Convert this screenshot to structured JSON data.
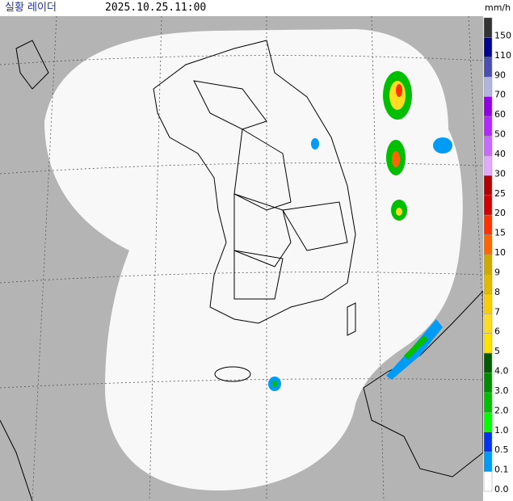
{
  "header": {
    "title": "실황 레이더",
    "time": "2025.10.25.11:00"
  },
  "legend": {
    "unit": "mm/h",
    "items": [
      {
        "label": "150",
        "color": "#333333"
      },
      {
        "label": "110",
        "color": "#000390"
      },
      {
        "label": "90",
        "color": "#4c4eb1"
      },
      {
        "label": "70",
        "color": "#b3b4de"
      },
      {
        "label": "60",
        "color": "#9300e4"
      },
      {
        "label": "50",
        "color": "#b329ff"
      },
      {
        "label": "40",
        "color": "#c969ff"
      },
      {
        "label": "30",
        "color": "#e0a9ff"
      },
      {
        "label": "25",
        "color": "#b40000"
      },
      {
        "label": "20",
        "color": "#d20000"
      },
      {
        "label": "15",
        "color": "#ff3200"
      },
      {
        "label": "10",
        "color": "#ff6600"
      },
      {
        "label": "9",
        "color": "#ccaa00"
      },
      {
        "label": "8",
        "color": "#e0b900"
      },
      {
        "label": "7",
        "color": "#f9cd00"
      },
      {
        "label": "6",
        "color": "#ffdc1f"
      },
      {
        "label": "5",
        "color": "#ffe100"
      },
      {
        "label": "4.0",
        "color": "#005a00"
      },
      {
        "label": "3.0",
        "color": "#008c00"
      },
      {
        "label": "2.0",
        "color": "#00be00"
      },
      {
        "label": "1.0",
        "color": "#00ff00"
      },
      {
        "label": "0.5",
        "color": "#0033f5"
      },
      {
        "label": "0.1",
        "color": "#009bf5"
      },
      {
        "label": "0.0",
        "color": "#ffffff"
      }
    ]
  }
}
